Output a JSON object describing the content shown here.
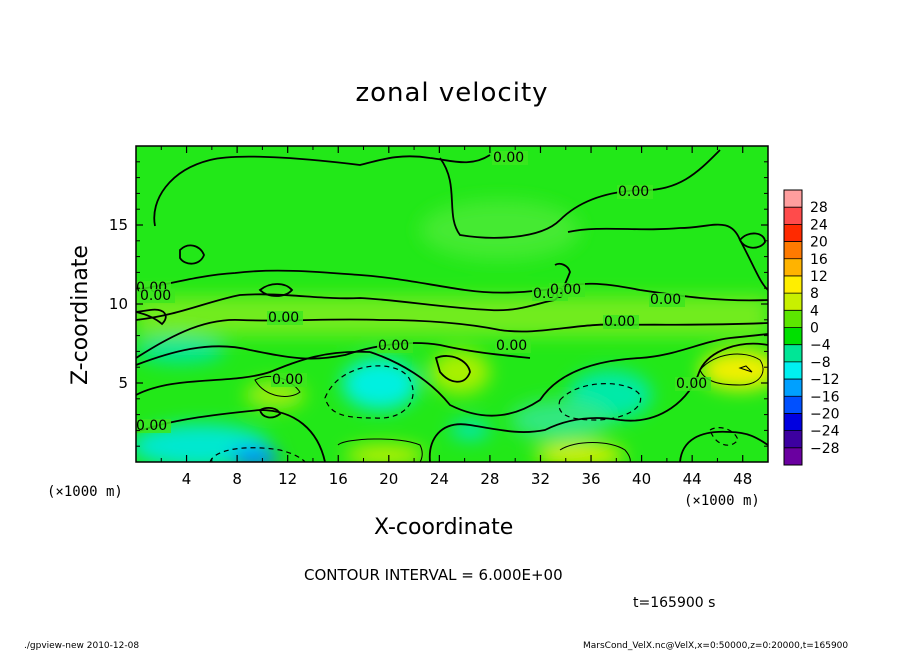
{
  "chart_data": {
    "type": "heatmap",
    "title": "zonal velocity",
    "xlabel": "X-coordinate",
    "ylabel": "Z-coordinate",
    "x_unit": "(×1000 m)",
    "z_unit": "(×1000 m)",
    "xlim": [
      0,
      50
    ],
    "zlim": [
      0,
      20
    ],
    "x_ticks": [
      "4",
      "8",
      "12",
      "16",
      "20",
      "24",
      "28",
      "32",
      "36",
      "40",
      "44",
      "48"
    ],
    "z_ticks": [
      "5",
      "10",
      "15"
    ],
    "colorbar": {
      "levels": [
        "28",
        "24",
        "20",
        "16",
        "12",
        "8",
        "4",
        "0",
        "−4",
        "−8",
        "−12",
        "−16",
        "−20",
        "−24",
        "−28"
      ],
      "colors": [
        "#ff9e9e",
        "#ff4b4b",
        "#ff2a00",
        "#ff7a00",
        "#ffb300",
        "#ffee00",
        "#c8f000",
        "#5ce600",
        "#00e000",
        "#00e696",
        "#00f0f0",
        "#00a0ff",
        "#0050ff",
        "#0000e0",
        "#3c00a0",
        "#6a00a0"
      ]
    },
    "contour_labels": [
      "0.00",
      "0.00",
      "0.00",
      "0.00",
      "0.00",
      "0.00",
      "0.00",
      "0.00",
      "0.00",
      "0.00",
      "0.00",
      "0.00",
      "0.00",
      "0.00"
    ],
    "contour_interval": "CONTOUR INTERVAL = 6.000E+00",
    "time": "t=165900 s"
  },
  "footer": {
    "left": "./gpview-new   2010-12-08",
    "right": "MarsCond_VelX.nc@VelX,x=0:50000,z=0:20000,t=165900"
  }
}
